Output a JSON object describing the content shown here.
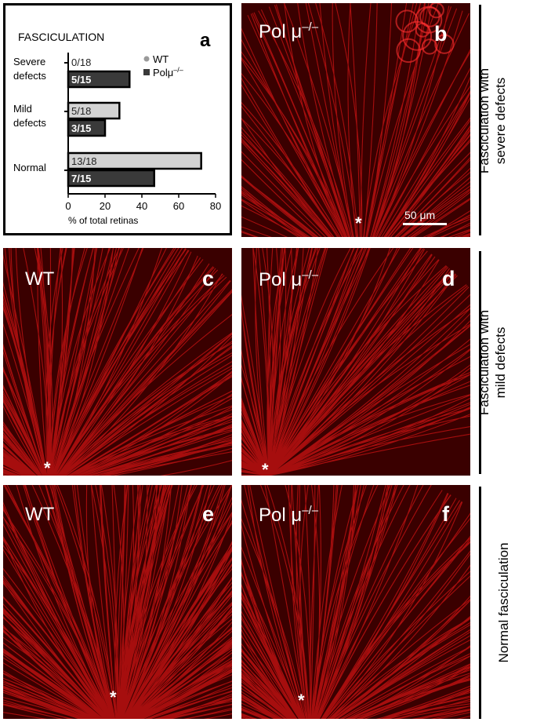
{
  "panels": {
    "a": {
      "letter": "a"
    },
    "b": {
      "letter": "b",
      "genotype": "Pol μ",
      "genotype_sup": "–/–",
      "scale_bar": "50 μm",
      "marker": "*"
    },
    "c": {
      "letter": "c",
      "genotype": "WT",
      "marker": "*"
    },
    "d": {
      "letter": "d",
      "genotype": "Pol μ",
      "genotype_sup": "–/–",
      "marker": "*"
    },
    "e": {
      "letter": "e",
      "genotype": "WT",
      "marker": "*"
    },
    "f": {
      "letter": "f",
      "genotype": "Pol μ",
      "genotype_sup": "–/–",
      "marker": "*"
    }
  },
  "side_labels": {
    "severe_line1": "Fasciculation with",
    "severe_line2": "severe defects",
    "mild_line1": "Fasciculation with",
    "mild_line2": "mild defects",
    "normal": "Normal fasciculation"
  },
  "chart_data": {
    "type": "bar",
    "orientation": "horizontal",
    "title": "FASCICULATION",
    "xlabel": "% of total retinas",
    "xlim": [
      0,
      80
    ],
    "xticks": [
      0,
      20,
      40,
      60,
      80
    ],
    "categories": [
      {
        "line1": "Severe",
        "line2": "defects"
      },
      {
        "line1": "Mild",
        "line2": "defects"
      },
      {
        "line1": "Normal",
        "line2": ""
      }
    ],
    "series": [
      {
        "name": "WT",
        "legend": "WT",
        "color": "#d3d3d3",
        "values": [
          0,
          27.8,
          72.2
        ],
        "labels": [
          "0/18",
          "5/18",
          "13/18"
        ]
      },
      {
        "name": "Polμ–/–",
        "legend": "Polμ",
        "legend_sup": "–/–",
        "color": "#3a3a3a",
        "values": [
          33.3,
          20.0,
          46.7
        ],
        "labels": [
          "5/15",
          "3/15",
          "7/15"
        ]
      }
    ],
    "legend_position": "top-right"
  }
}
